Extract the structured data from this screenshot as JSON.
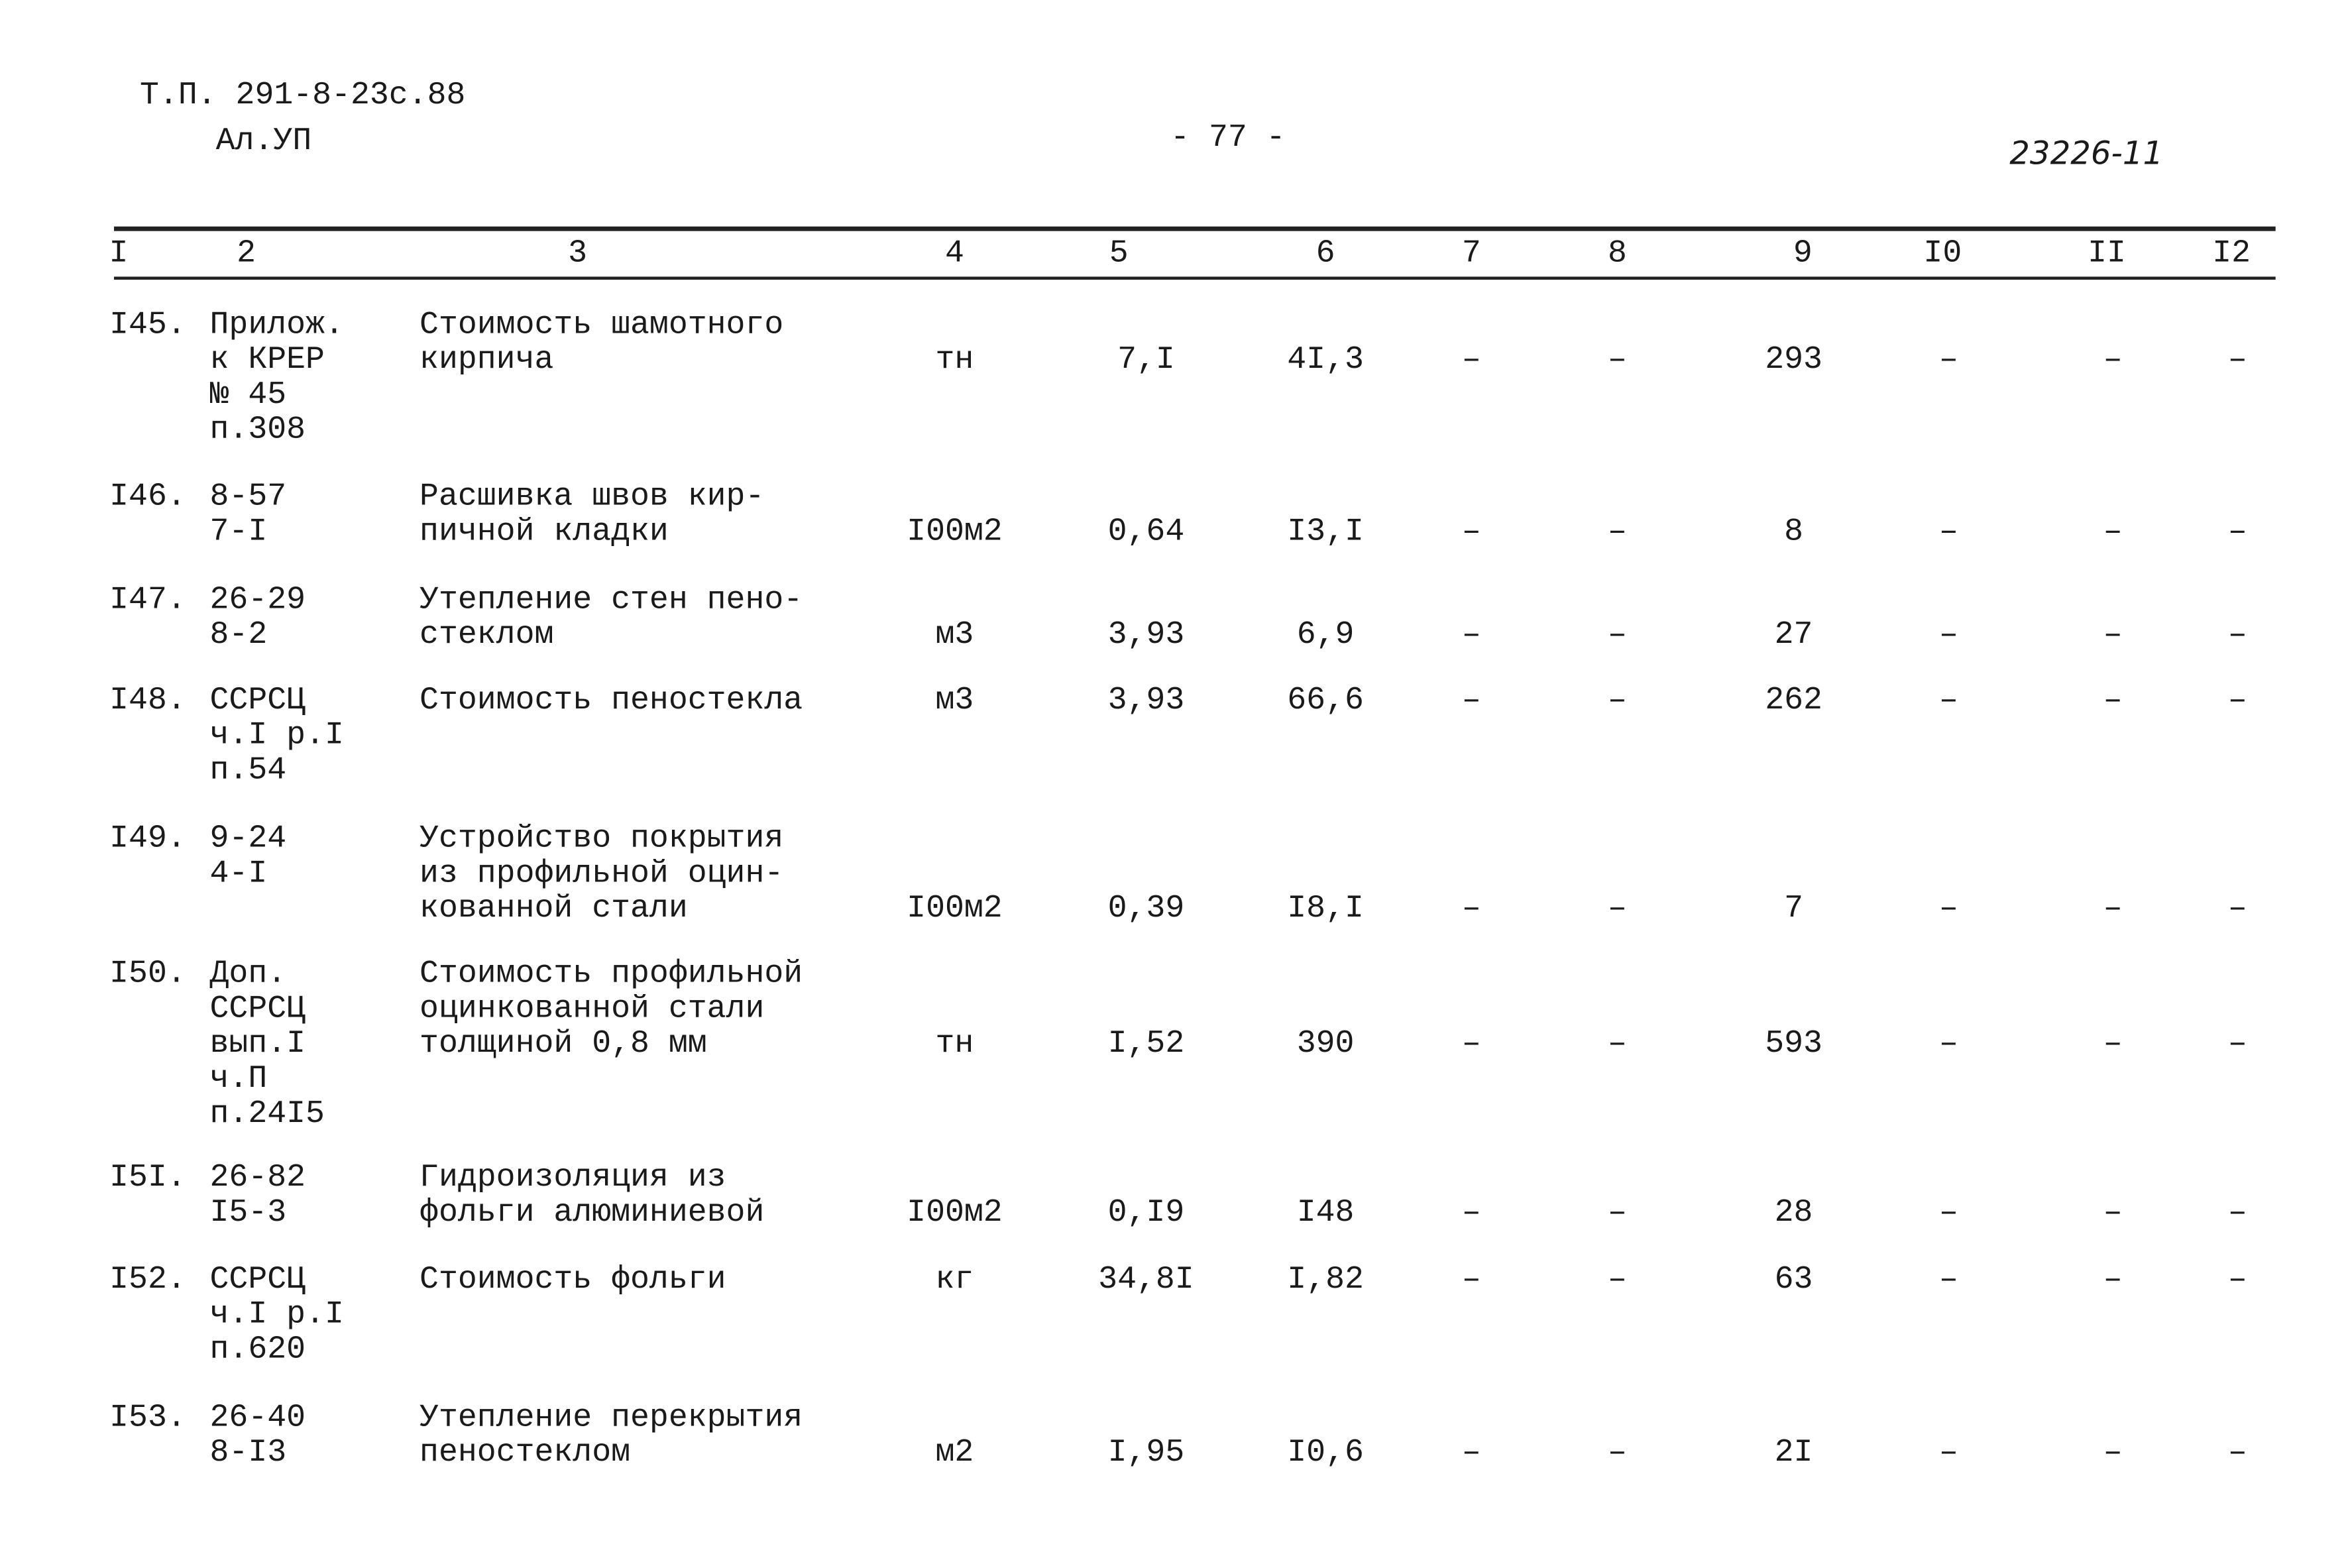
{
  "header": {
    "project": "Т.П. 291-8-23с.88",
    "album": "Ал.УП",
    "page": "- 77 -",
    "stamp": "23226-11"
  },
  "table": {
    "columns": [
      "I",
      "2",
      "3",
      "4",
      "5",
      "6",
      "7",
      "8",
      "9",
      "I0",
      "II",
      "I2"
    ],
    "rows": [
      [
        "I45.",
        "Прилож.\nк КРЕР\n№ 45\nп.308",
        "Стоимость шамотного\nкирпича",
        "тн",
        "7,I",
        "4I,3",
        "–",
        "–",
        "293",
        "–",
        "–",
        "–"
      ],
      [
        "I46.",
        "8-57\n7-I",
        "Расшивка швов кир-\nпичной кладки",
        "I00м2",
        "0,64",
        "I3,I",
        "–",
        "–",
        "8",
        "–",
        "–",
        "–"
      ],
      [
        "I47.",
        "26-29\n8-2",
        "Утепление стен пено-\nстеклом",
        "м3",
        "3,93",
        "6,9",
        "–",
        "–",
        "27",
        "–",
        "–",
        "–"
      ],
      [
        "I48.",
        "ССРСЦ\nч.I р.I\nп.54",
        "Стоимость пеностекла",
        "м3",
        "3,93",
        "66,6",
        "–",
        "–",
        "262",
        "–",
        "–",
        "–"
      ],
      [
        "I49.",
        "9-24\n4-I",
        "Устройство покрытия\nиз профильной оцин-\nкованной стали",
        "I00м2",
        "0,39",
        "I8,I",
        "–",
        "–",
        "7",
        "–",
        "–",
        "–"
      ],
      [
        "I50.",
        "Доп.\nССРСЦ\nвып.I\nч.П\nп.24I5",
        "Стоимость профильной\nоцинкованной стали\nтолщиной 0,8 мм",
        "тн",
        "I,52",
        "390",
        "–",
        "–",
        "593",
        "–",
        "–",
        "–"
      ],
      [
        "I5I.",
        "26-82\nI5-3",
        "Гидроизоляция из\nфольги алюминиевой",
        "I00м2",
        "0,I9",
        "I48",
        "–",
        "–",
        "28",
        "–",
        "–",
        "–"
      ],
      [
        "I52.",
        "ССРСЦ\nч.I р.I\nп.620",
        "Стоимость фольги",
        "кг",
        "34,8I",
        "I,82",
        "–",
        "–",
        "63",
        "–",
        "–",
        "–"
      ],
      [
        "I53.",
        "26-40\n8-I3",
        "Утепление перекрытия\nпеностеклом",
        "м2",
        "I,95",
        "I0,6",
        "–",
        "–",
        "2I",
        "–",
        "–",
        "–"
      ]
    ]
  }
}
